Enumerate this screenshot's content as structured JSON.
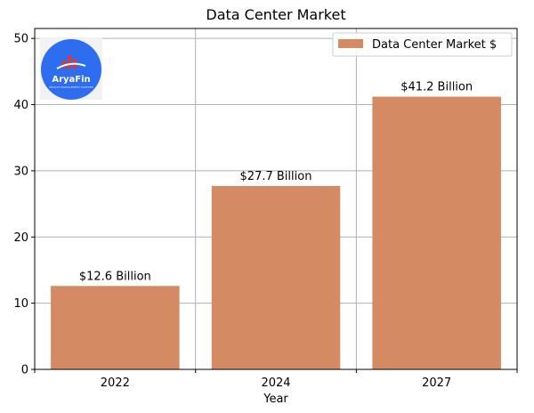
{
  "chart_data": {
    "type": "bar",
    "title": "Data Center Market",
    "xlabel": "Year",
    "ylabel": "",
    "categories": [
      "2022",
      "2024",
      "2027"
    ],
    "series": [
      {
        "name": "Data Center Market $",
        "values": [
          12.6,
          27.7,
          41.2
        ],
        "labels": [
          "$12.6 Billion",
          "$27.7 Billion",
          "$41.2 Billion"
        ],
        "color": "#d48b64"
      }
    ],
    "ylim": [
      0,
      51.5
    ],
    "yticks": [
      0,
      10,
      20,
      30,
      40,
      50
    ],
    "grid": true,
    "legend_position": "top-right"
  },
  "logo": {
    "text": "AryaFin",
    "tagline": "WEALTH MANAGEMENT PARTNER",
    "circle_color": "#2f6df0",
    "bars_color": "#d63a3a"
  }
}
